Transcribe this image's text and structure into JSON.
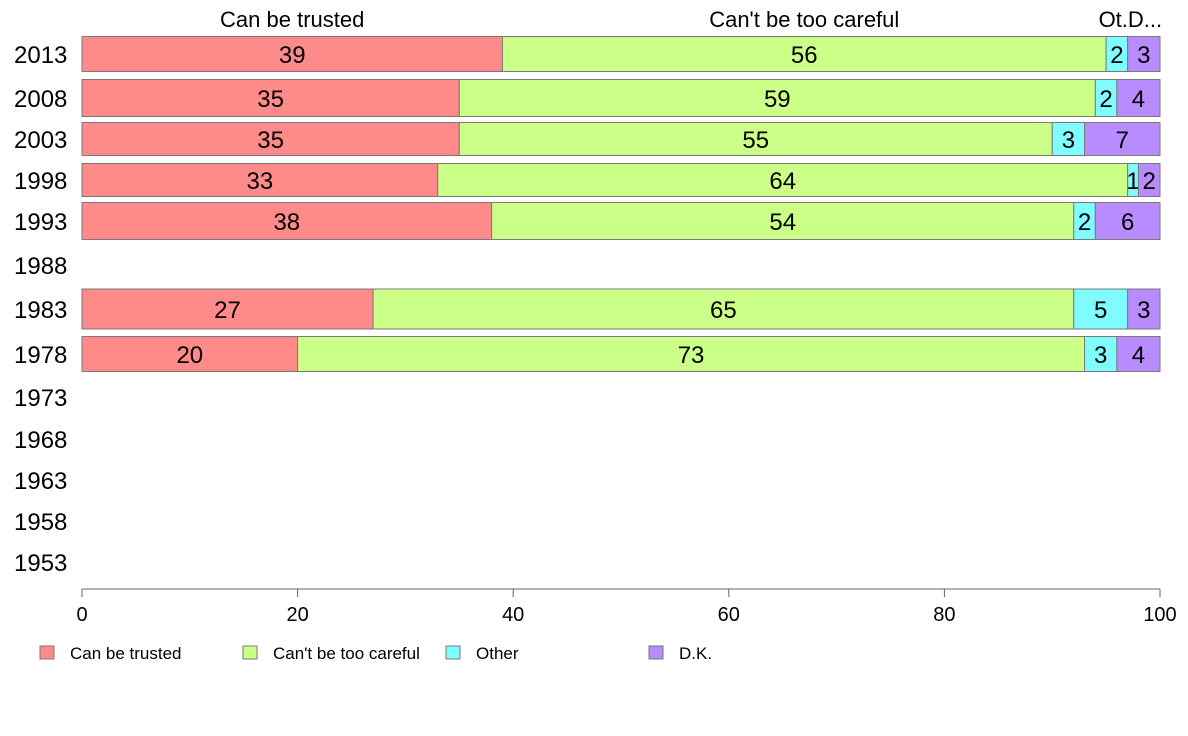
{
  "chart_data": {
    "type": "bar",
    "orientation": "horizontal",
    "stacked": true,
    "categories": [
      "2013",
      "2008",
      "2003",
      "1998",
      "1993",
      "1988",
      "1983",
      "1978",
      "1973",
      "1968",
      "1963",
      "1958",
      "1953"
    ],
    "series": [
      {
        "name": "Can be trusted",
        "color": "#ff8a8a",
        "values": [
          39,
          35,
          35,
          33,
          38,
          null,
          27,
          20,
          null,
          null,
          null,
          null,
          null
        ]
      },
      {
        "name": "Can't be too careful",
        "color": "#ccff88",
        "values": [
          56,
          59,
          55,
          64,
          54,
          null,
          65,
          73,
          null,
          null,
          null,
          null,
          null
        ]
      },
      {
        "name": "Other",
        "color": "#7ffcff",
        "values": [
          2,
          2,
          3,
          1,
          2,
          null,
          5,
          3,
          null,
          null,
          null,
          null,
          null
        ]
      },
      {
        "name": "D.K.",
        "color": "#b88bff",
        "values": [
          3,
          4,
          7,
          2,
          6,
          null,
          3,
          4,
          null,
          null,
          null,
          null,
          null
        ]
      }
    ],
    "xlim": [
      0,
      100
    ],
    "xticks": [
      0,
      20,
      40,
      60,
      80,
      100
    ],
    "column_headers": [
      "Can be trusted",
      "Can't be too careful",
      "Ot.D..."
    ],
    "legend_position": "bottom",
    "grid": false
  }
}
